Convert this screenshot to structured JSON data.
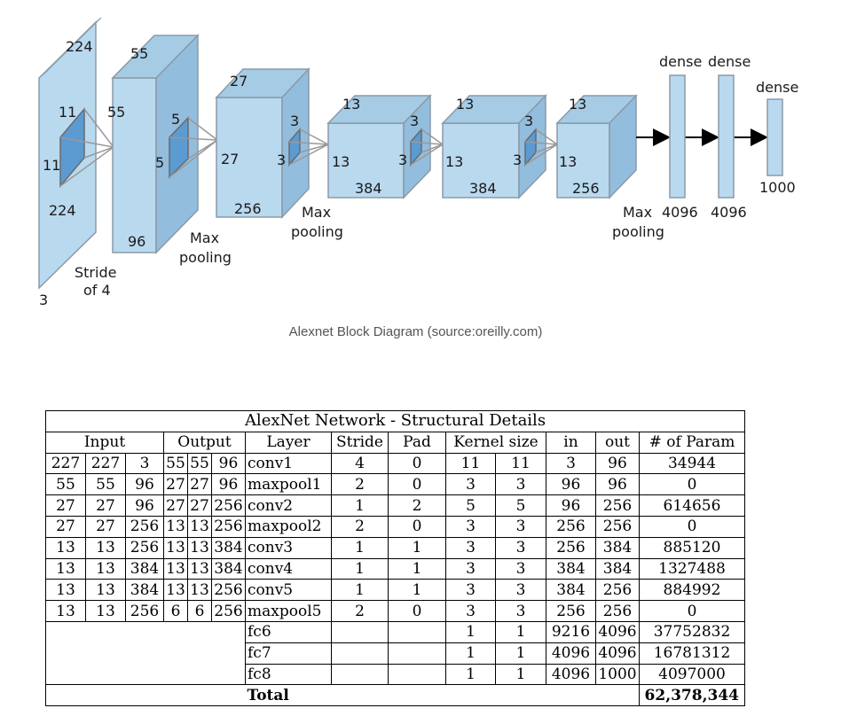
{
  "diagram": {
    "block1": {
      "height": "224",
      "depth": "224",
      "channels": "3",
      "kernel_h": "11",
      "kernel_w": "11",
      "stride": "Stride",
      "stride2": "of 4"
    },
    "block2": {
      "height": "55",
      "width": "55",
      "channels": "96",
      "kernel_h": "5",
      "kernel_w": "5",
      "pool1": "Max",
      "pool2": "pooling"
    },
    "block3": {
      "height": "27",
      "width": "27",
      "channels": "256",
      "kernel_h": "3",
      "kernel_w": "3",
      "pool1": "Max",
      "pool2": "pooling"
    },
    "block4": {
      "height": "13",
      "width": "13",
      "channels": "384",
      "kernel_h": "3",
      "kernel_w": "3"
    },
    "block5": {
      "height": "13",
      "width": "13",
      "channels": "384",
      "kernel_h": "3",
      "kernel_w": "3"
    },
    "block6": {
      "height": "13",
      "width": "13",
      "channels": "256",
      "pool1": "Max",
      "pool2": "pooling"
    },
    "dense": [
      {
        "label": "dense",
        "size": "4096"
      },
      {
        "label": "dense",
        "size": "4096"
      },
      {
        "label": "dense",
        "size": "1000"
      }
    ]
  },
  "caption": "Alexnet Block Diagram (source:oreilly.com)",
  "table": {
    "title": "AlexNet Network - Structural Details",
    "headers": {
      "input": "Input",
      "output": "Output",
      "layer": "Layer",
      "stride": "Stride",
      "pad": "Pad",
      "kernel": "Kernel size",
      "in": "in",
      "out": "out",
      "params": "# of Param"
    },
    "rows": [
      [
        "227",
        "227",
        "3",
        "55",
        "55",
        "96",
        "conv1",
        "4",
        "0",
        "11",
        "11",
        "3",
        "96",
        "34944"
      ],
      [
        "55",
        "55",
        "96",
        "27",
        "27",
        "96",
        "maxpool1",
        "2",
        "0",
        "3",
        "3",
        "96",
        "96",
        "0"
      ],
      [
        "27",
        "27",
        "96",
        "27",
        "27",
        "256",
        "conv2",
        "1",
        "2",
        "5",
        "5",
        "96",
        "256",
        "614656"
      ],
      [
        "27",
        "27",
        "256",
        "13",
        "13",
        "256",
        "maxpool2",
        "2",
        "0",
        "3",
        "3",
        "256",
        "256",
        "0"
      ],
      [
        "13",
        "13",
        "256",
        "13",
        "13",
        "384",
        "conv3",
        "1",
        "1",
        "3",
        "3",
        "256",
        "384",
        "885120"
      ],
      [
        "13",
        "13",
        "384",
        "13",
        "13",
        "384",
        "conv4",
        "1",
        "1",
        "3",
        "3",
        "384",
        "384",
        "1327488"
      ],
      [
        "13",
        "13",
        "384",
        "13",
        "13",
        "256",
        "conv5",
        "1",
        "1",
        "3",
        "3",
        "384",
        "256",
        "884992"
      ],
      [
        "13",
        "13",
        "256",
        "6",
        "6",
        "256",
        "maxpool5",
        "2",
        "0",
        "3",
        "3",
        "256",
        "256",
        "0"
      ]
    ],
    "fc_rows": [
      [
        "fc6",
        "1",
        "1",
        "9216",
        "4096",
        "37752832"
      ],
      [
        "fc7",
        "1",
        "1",
        "4096",
        "4096",
        "16781312"
      ],
      [
        "fc8",
        "1",
        "1",
        "4096",
        "1000",
        "4097000"
      ]
    ],
    "total_label": "Total",
    "total_value": "62,378,344"
  }
}
